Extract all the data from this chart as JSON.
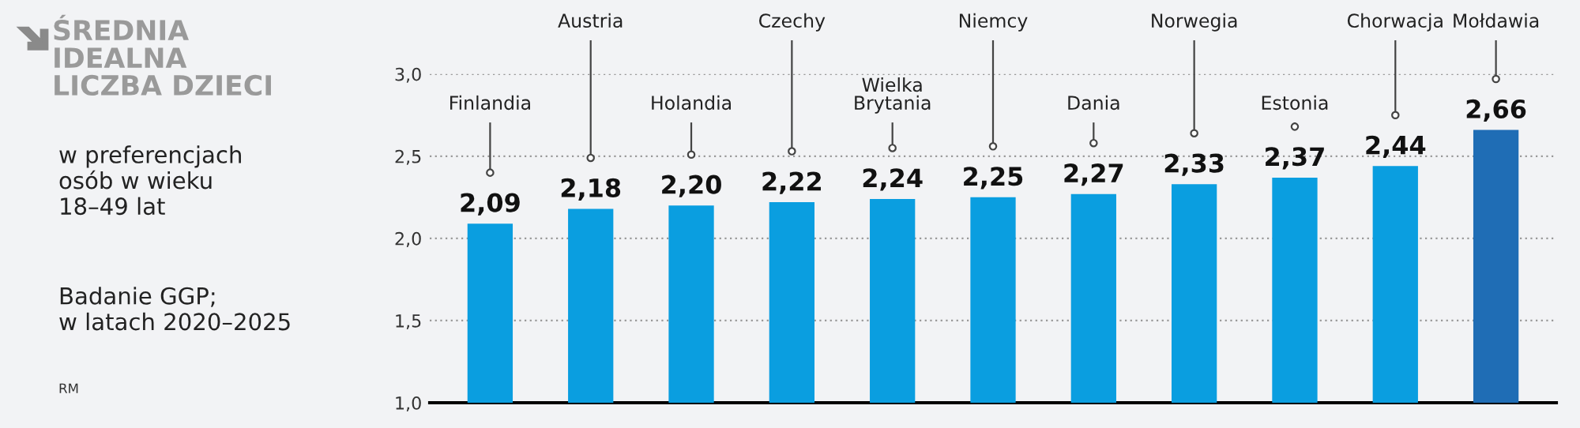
{
  "chart_data": {
    "type": "bar",
    "title": "ŚREDNIA\nIDEALNA\nLICZBA DZIECI",
    "subtitle": "w preferencjach\nosób w wieku\n18–49 lat",
    "annotations": [
      "Badanie GGP;\nw latach 2020–2025",
      "RM"
    ],
    "categories": [
      "Finlandia",
      "Austria",
      "Holandia",
      "Czechy",
      "Wielka\nBrytania",
      "Niemcy",
      "Dania",
      "Norwegia",
      "Estonia",
      "Chorwacja",
      "Mołdawia"
    ],
    "values": [
      2.09,
      2.18,
      2.2,
      2.22,
      2.24,
      2.25,
      2.27,
      2.33,
      2.37,
      2.44,
      2.66
    ],
    "value_labels": [
      "2,09",
      "2,18",
      "2,20",
      "2,22",
      "2,24",
      "2,25",
      "2,27",
      "2,33",
      "2,37",
      "2,44",
      "2,66"
    ],
    "colors": [
      "#0a9ee0",
      "#0a9ee0",
      "#0a9ee0",
      "#0a9ee0",
      "#0a9ee0",
      "#0a9ee0",
      "#0a9ee0",
      "#0a9ee0",
      "#0a9ee0",
      "#0a9ee0",
      "#1f6db5"
    ],
    "ylim": [
      1.0,
      3.0
    ],
    "yticks": [
      {
        "value": 1.0,
        "label": "1,0"
      },
      {
        "value": 1.5,
        "label": "1,5"
      },
      {
        "value": 2.0,
        "label": "2,0"
      },
      {
        "value": 2.5,
        "label": "2,5"
      },
      {
        "value": 3.0,
        "label": "3,0"
      }
    ],
    "grid": "y"
  }
}
